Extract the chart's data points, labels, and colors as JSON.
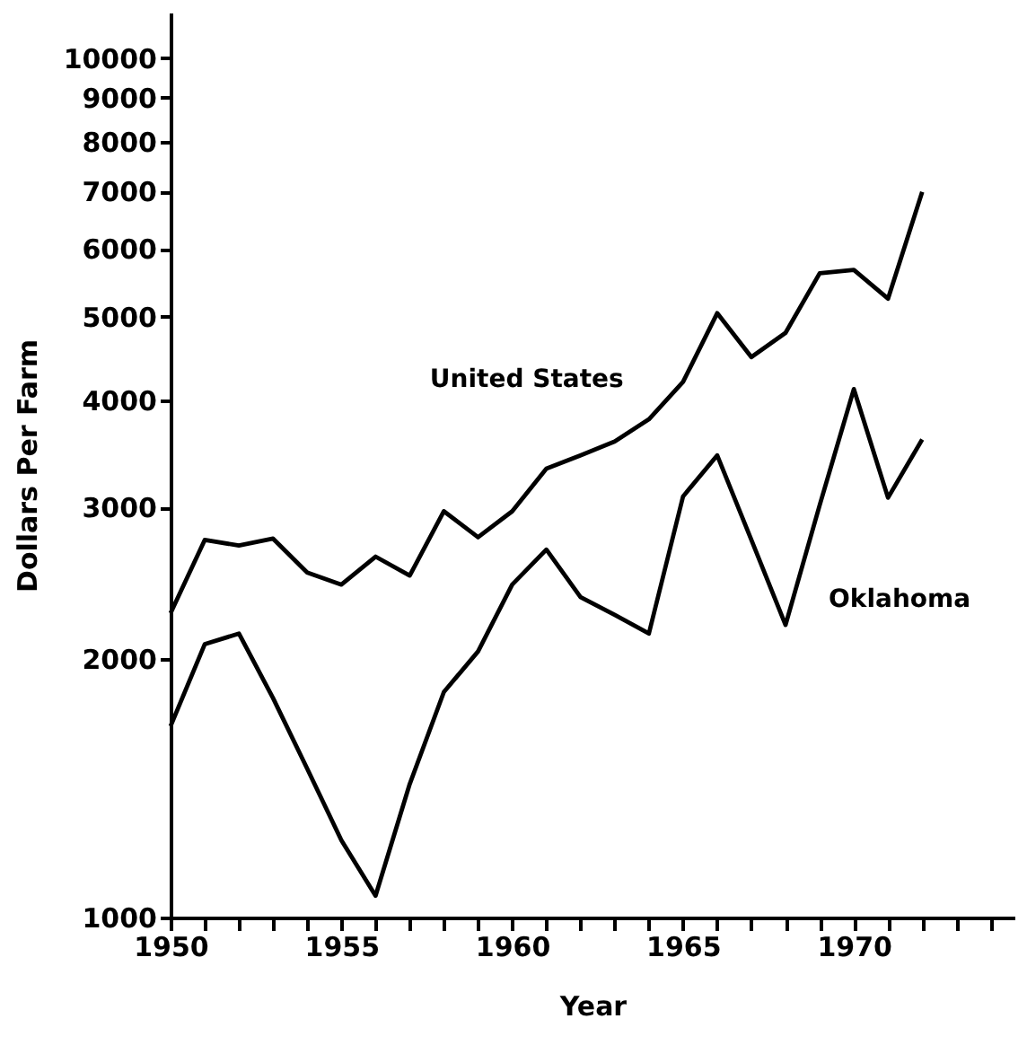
{
  "chart_data": {
    "type": "line",
    "xlabel": "Year",
    "ylabel": "Dollars   Per   Farm",
    "log": "y",
    "grid": false,
    "marker": "none",
    "line_style": "solid",
    "x": [
      1950,
      1951,
      1952,
      1953,
      1954,
      1955,
      1956,
      1957,
      1958,
      1959,
      1960,
      1961,
      1962,
      1963,
      1964,
      1965,
      1966,
      1967,
      1968,
      1969,
      1970,
      1971,
      1972
    ],
    "xlim": [
      1950,
      1974.7
    ],
    "xticks": [
      1950,
      {
        "value": 1951,
        "label": null
      },
      {
        "value": 1952,
        "label": null
      },
      {
        "value": 1953,
        "label": null
      },
      {
        "value": 1954,
        "label": null
      },
      1955,
      {
        "value": 1956,
        "label": null
      },
      {
        "value": 1957,
        "label": null
      },
      {
        "value": 1958,
        "label": null
      },
      {
        "value": 1959,
        "label": null
      },
      1960,
      {
        "value": 1961,
        "label": null
      },
      {
        "value": 1962,
        "label": null
      },
      {
        "value": 1963,
        "label": null
      },
      {
        "value": 1964,
        "label": null
      },
      1965,
      {
        "value": 1966,
        "label": null
      },
      {
        "value": 1967,
        "label": null
      },
      {
        "value": 1968,
        "label": null
      },
      {
        "value": 1969,
        "label": null
      },
      1970,
      {
        "value": 1971,
        "label": null
      },
      {
        "value": 1972,
        "label": null
      },
      {
        "value": 1973,
        "label": null
      },
      {
        "value": 1974,
        "label": null
      }
    ],
    "ylim": [
      1000,
      11300
    ],
    "yticks": [
      1000,
      2000,
      3000,
      4000,
      5000,
      6000,
      7000,
      8000,
      9000,
      10000
    ],
    "series": [
      {
        "name": "United States",
        "color": "#000000",
        "values": [
          2260,
          2750,
          2710,
          2760,
          2520,
          2440,
          2630,
          2500,
          2970,
          2770,
          2970,
          3330,
          3450,
          3580,
          3800,
          4200,
          5050,
          4490,
          4790,
          5620,
          5670,
          5250,
          6990
        ]
      },
      {
        "name": "Oklahoma",
        "color": "#000000",
        "values": [
          1670,
          2080,
          2140,
          1800,
          1490,
          1230,
          1060,
          1430,
          1830,
          2040,
          2440,
          2680,
          2360,
          2250,
          2140,
          3090,
          3450,
          2750,
          2190,
          3020,
          4120,
          3080,
          3600
        ]
      }
    ]
  }
}
